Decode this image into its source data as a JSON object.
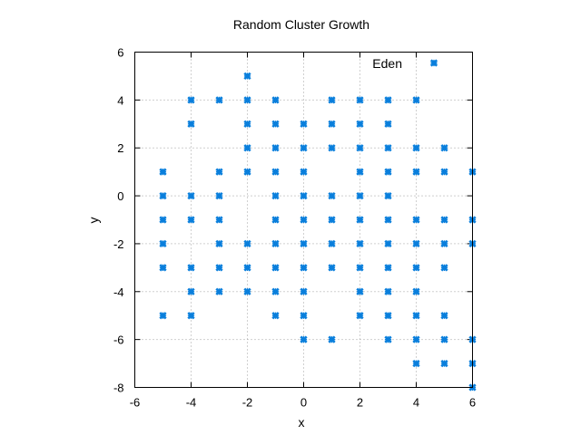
{
  "chart_data": {
    "type": "scatter",
    "title": "Random Cluster Growth",
    "xlabel": "x",
    "ylabel": "y",
    "xlim": [
      -6,
      6
    ],
    "ylim": [
      -8,
      6
    ],
    "xticks": [
      -6,
      -4,
      -2,
      0,
      2,
      4,
      6
    ],
    "yticks": [
      -8,
      -6,
      -4,
      -2,
      0,
      2,
      4,
      6
    ],
    "grid": true,
    "legend_position": "top-right",
    "series": [
      {
        "name": "Eden",
        "color": "#0a7fdc",
        "marker": "x-cross",
        "points": [
          [
            -2,
            5
          ],
          [
            -4,
            4
          ],
          [
            -3,
            4
          ],
          [
            -2,
            4
          ],
          [
            -1,
            4
          ],
          [
            1,
            4
          ],
          [
            2,
            4
          ],
          [
            3,
            4
          ],
          [
            4,
            4
          ],
          [
            -4,
            3
          ],
          [
            -2,
            3
          ],
          [
            -1,
            3
          ],
          [
            0,
            3
          ],
          [
            1,
            3
          ],
          [
            2,
            3
          ],
          [
            3,
            3
          ],
          [
            -2,
            2
          ],
          [
            -1,
            2
          ],
          [
            0,
            2
          ],
          [
            1,
            2
          ],
          [
            2,
            2
          ],
          [
            3,
            2
          ],
          [
            4,
            2
          ],
          [
            5,
            2
          ],
          [
            -5,
            1
          ],
          [
            -3,
            1
          ],
          [
            -2,
            1
          ],
          [
            -1,
            1
          ],
          [
            0,
            1
          ],
          [
            2,
            1
          ],
          [
            3,
            1
          ],
          [
            4,
            1
          ],
          [
            5,
            1
          ],
          [
            6,
            1
          ],
          [
            -5,
            0
          ],
          [
            -4,
            0
          ],
          [
            -3,
            0
          ],
          [
            -1,
            0
          ],
          [
            0,
            0
          ],
          [
            1,
            0
          ],
          [
            2,
            0
          ],
          [
            3,
            0
          ],
          [
            -5,
            -1
          ],
          [
            -4,
            -1
          ],
          [
            -3,
            -1
          ],
          [
            -1,
            -1
          ],
          [
            0,
            -1
          ],
          [
            1,
            -1
          ],
          [
            2,
            -1
          ],
          [
            3,
            -1
          ],
          [
            4,
            -1
          ],
          [
            5,
            -1
          ],
          [
            6,
            -1
          ],
          [
            -5,
            -2
          ],
          [
            -3,
            -2
          ],
          [
            -2,
            -2
          ],
          [
            -1,
            -2
          ],
          [
            0,
            -2
          ],
          [
            1,
            -2
          ],
          [
            2,
            -2
          ],
          [
            3,
            -2
          ],
          [
            4,
            -2
          ],
          [
            5,
            -2
          ],
          [
            6,
            -2
          ],
          [
            -5,
            -3
          ],
          [
            -4,
            -3
          ],
          [
            -3,
            -3
          ],
          [
            -2,
            -3
          ],
          [
            -1,
            -3
          ],
          [
            0,
            -3
          ],
          [
            1,
            -3
          ],
          [
            2,
            -3
          ],
          [
            3,
            -3
          ],
          [
            4,
            -3
          ],
          [
            5,
            -3
          ],
          [
            -4,
            -4
          ],
          [
            -3,
            -4
          ],
          [
            -2,
            -4
          ],
          [
            -1,
            -4
          ],
          [
            0,
            -4
          ],
          [
            2,
            -4
          ],
          [
            3,
            -4
          ],
          [
            4,
            -4
          ],
          [
            -5,
            -5
          ],
          [
            -4,
            -5
          ],
          [
            -1,
            -5
          ],
          [
            0,
            -5
          ],
          [
            2,
            -5
          ],
          [
            3,
            -5
          ],
          [
            4,
            -5
          ],
          [
            5,
            -5
          ],
          [
            0,
            -6
          ],
          [
            1,
            -6
          ],
          [
            3,
            -6
          ],
          [
            4,
            -6
          ],
          [
            5,
            -6
          ],
          [
            6,
            -6
          ],
          [
            4,
            -7
          ],
          [
            5,
            -7
          ],
          [
            6,
            -7
          ],
          [
            6,
            -8
          ]
        ]
      }
    ]
  }
}
